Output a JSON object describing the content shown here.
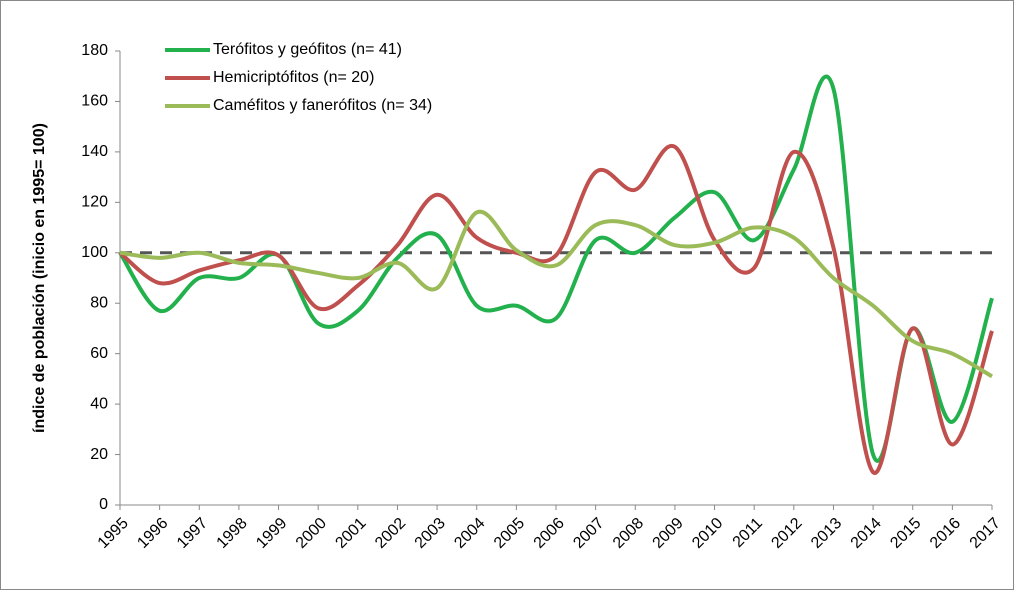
{
  "chart_data": {
    "type": "line",
    "y_label": "índice de población  (inicio en 1995= 100)",
    "categories": [
      "1995",
      "1996",
      "1997",
      "1998",
      "1999",
      "2000",
      "2001",
      "2002",
      "2003",
      "2004",
      "2005",
      "2006",
      "2007",
      "2008",
      "2009",
      "2010",
      "2011",
      "2012",
      "2013",
      "2014",
      "2015",
      "2016",
      "2017"
    ],
    "series": [
      {
        "name": "Terófitos y geófitos (n= 41)",
        "color": "#22b14c",
        "values": [
          100,
          77,
          90,
          90,
          99,
          72,
          77,
          98,
          107,
          79,
          79,
          74,
          105,
          100,
          114,
          124,
          105,
          133,
          165,
          20,
          70,
          33,
          82
        ]
      },
      {
        "name": "Hemicriptófitos (n= 20)",
        "color": "#c0504d",
        "values": [
          100,
          88,
          93,
          97,
          99,
          78,
          87,
          103,
          123,
          106,
          100,
          99,
          132,
          125,
          142,
          105,
          94,
          140,
          102,
          13,
          70,
          24,
          69
        ]
      },
      {
        "name": "Caméfitos y fanerófitos (n= 34)",
        "color": "#9bbb59",
        "values": [
          100,
          98,
          100,
          96,
          95,
          92,
          90,
          96,
          86,
          116,
          101,
          95,
          111,
          111,
          103,
          104,
          110,
          106,
          90,
          79,
          65,
          60,
          51
        ]
      }
    ],
    "reference_line": 100,
    "ylim": [
      0,
      180
    ],
    "yticks": [
      0,
      20,
      40,
      60,
      80,
      100,
      120,
      140,
      160,
      180
    ]
  }
}
